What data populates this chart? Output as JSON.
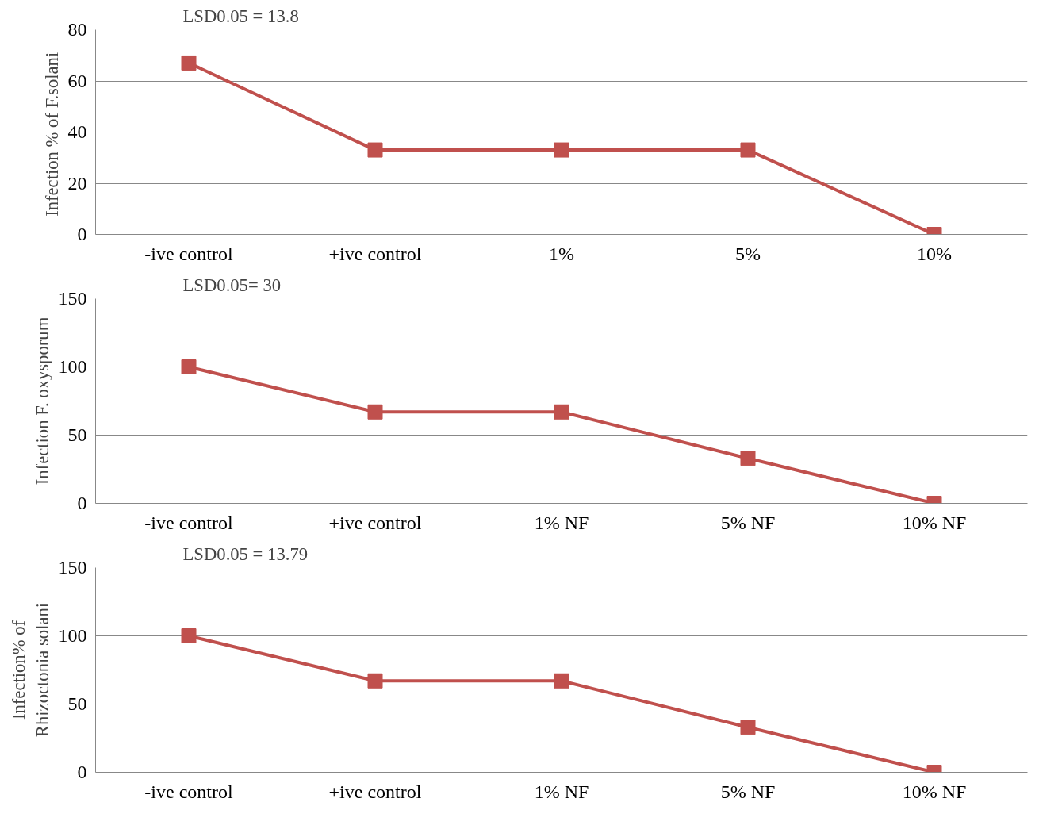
{
  "chart_data": [
    {
      "type": "line",
      "ylabel": "Infection %  of F.solani",
      "annotations": [
        "LSD0.05 = 13.8"
      ],
      "categories": [
        "-ive control",
        "+ive control",
        "1%",
        "5%",
        "10%"
      ],
      "series": [
        {
          "color": "#c0504d",
          "values": [
            67,
            33,
            33,
            33,
            0
          ]
        }
      ],
      "ylim": [
        0,
        80
      ],
      "yticks": [
        0,
        20,
        40,
        60,
        80
      ],
      "grid": "y",
      "marker": "square"
    },
    {
      "type": "line",
      "ylabel": "Infection F. oxysporum",
      "annotations": [
        "LSD0.05= 30"
      ],
      "categories": [
        "-ive control",
        "+ive control",
        "1% NF",
        "5% NF",
        "10% NF"
      ],
      "series": [
        {
          "color": "#c0504d",
          "values": [
            100,
            67,
            67,
            33,
            0
          ]
        }
      ],
      "ylim": [
        0,
        150
      ],
      "yticks": [
        0,
        50,
        100,
        150
      ],
      "grid": "y",
      "marker": "square"
    },
    {
      "type": "line",
      "ylabel": "Infection% of\nRhizoctonia solani",
      "annotations": [
        "LSD0.05 = 13.79"
      ],
      "categories": [
        "-ive control",
        "+ive control",
        "1% NF",
        "5% NF",
        "10% NF"
      ],
      "series": [
        {
          "color": "#c0504d",
          "values": [
            100,
            67,
            67,
            33,
            0
          ]
        }
      ],
      "ylim": [
        0,
        150
      ],
      "yticks": [
        0,
        50,
        100,
        150
      ],
      "grid": "y",
      "marker": "square"
    }
  ]
}
